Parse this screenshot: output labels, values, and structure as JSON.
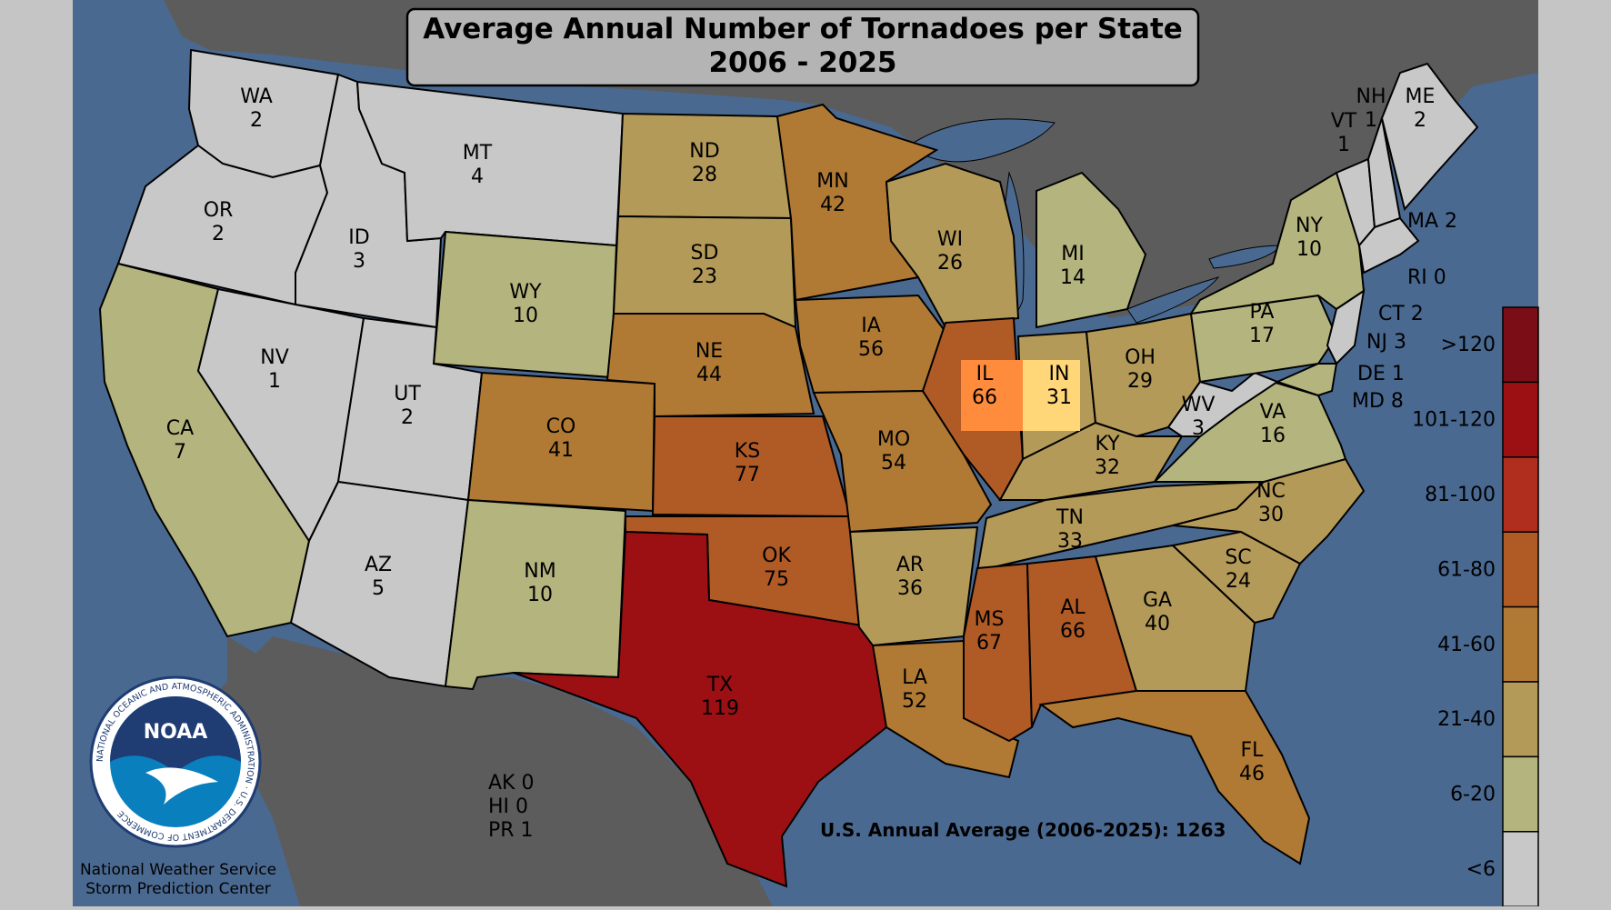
{
  "title": {
    "line1": "Average Annual Number of Tornadoes per State",
    "line2": "2006 - 2025"
  },
  "national_average": "U.S. Annual Average (2006-2025): 1263",
  "territories": [
    "AK 0",
    "HI 0",
    "PR 1"
  ],
  "credit": {
    "logo_text": "NOAA",
    "logo_ring_text": "NATIONAL OCEANIC AND ATMOSPHERIC ADMINISTRATION · U.S. DEPARTMENT OF COMMERCE",
    "line1": "National Weather Service",
    "line2": "Storm Prediction Center"
  },
  "legend": {
    "bins": [
      {
        "label": ">120",
        "color": "#7b0d16"
      },
      {
        "label": "101-120",
        "color": "#9c1014"
      },
      {
        "label": "81-100",
        "color": "#b02e1e"
      },
      {
        "label": "61-80",
        "color": "#b05a26"
      },
      {
        "label": "41-60",
        "color": "#b07a34"
      },
      {
        "label": "21-40",
        "color": "#b49a58"
      },
      {
        "label": "6-20",
        "color": "#b4b47e"
      },
      {
        "label": "<6",
        "color": "#c8c8c8"
      }
    ]
  },
  "colors": {
    "ocean": "#4a6991",
    "foreign_land": "#5c5c5c",
    "il_highlight": "#ff8c3c",
    "in_highlight": "#ffd778"
  },
  "states": [
    {
      "abbr": "WA",
      "value": "2"
    },
    {
      "abbr": "OR",
      "value": "2"
    },
    {
      "abbr": "CA",
      "value": "7"
    },
    {
      "abbr": "ID",
      "value": "3"
    },
    {
      "abbr": "NV",
      "value": "1"
    },
    {
      "abbr": "MT",
      "value": "4"
    },
    {
      "abbr": "WY",
      "value": "10"
    },
    {
      "abbr": "UT",
      "value": "2"
    },
    {
      "abbr": "AZ",
      "value": "5"
    },
    {
      "abbr": "CO",
      "value": "41"
    },
    {
      "abbr": "NM",
      "value": "10"
    },
    {
      "abbr": "ND",
      "value": "28"
    },
    {
      "abbr": "SD",
      "value": "23"
    },
    {
      "abbr": "NE",
      "value": "44"
    },
    {
      "abbr": "KS",
      "value": "77"
    },
    {
      "abbr": "OK",
      "value": "75"
    },
    {
      "abbr": "TX",
      "value": "119"
    },
    {
      "abbr": "MN",
      "value": "42"
    },
    {
      "abbr": "IA",
      "value": "56"
    },
    {
      "abbr": "MO",
      "value": "54"
    },
    {
      "abbr": "AR",
      "value": "36"
    },
    {
      "abbr": "LA",
      "value": "52"
    },
    {
      "abbr": "WI",
      "value": "26"
    },
    {
      "abbr": "IL",
      "value": "66"
    },
    {
      "abbr": "MI",
      "value": "14"
    },
    {
      "abbr": "IN",
      "value": "31"
    },
    {
      "abbr": "OH",
      "value": "29"
    },
    {
      "abbr": "KY",
      "value": "32"
    },
    {
      "abbr": "TN",
      "value": "33"
    },
    {
      "abbr": "MS",
      "value": "67"
    },
    {
      "abbr": "AL",
      "value": "66"
    },
    {
      "abbr": "GA",
      "value": "40"
    },
    {
      "abbr": "FL",
      "value": "46"
    },
    {
      "abbr": "SC",
      "value": "24"
    },
    {
      "abbr": "NC",
      "value": "30"
    },
    {
      "abbr": "VA",
      "value": "16"
    },
    {
      "abbr": "WV",
      "value": "3"
    },
    {
      "abbr": "PA",
      "value": "17"
    },
    {
      "abbr": "NY",
      "value": "10"
    },
    {
      "abbr": "VT",
      "value": "1"
    },
    {
      "abbr": "NH",
      "value": "1"
    },
    {
      "abbr": "ME",
      "value": "2"
    }
  ],
  "small_states": [
    {
      "text": "MA 2"
    },
    {
      "text": "RI 0"
    },
    {
      "text": "CT 2"
    },
    {
      "text": "NJ 3"
    },
    {
      "text": "DE 1"
    },
    {
      "text": "MD 8"
    }
  ]
}
